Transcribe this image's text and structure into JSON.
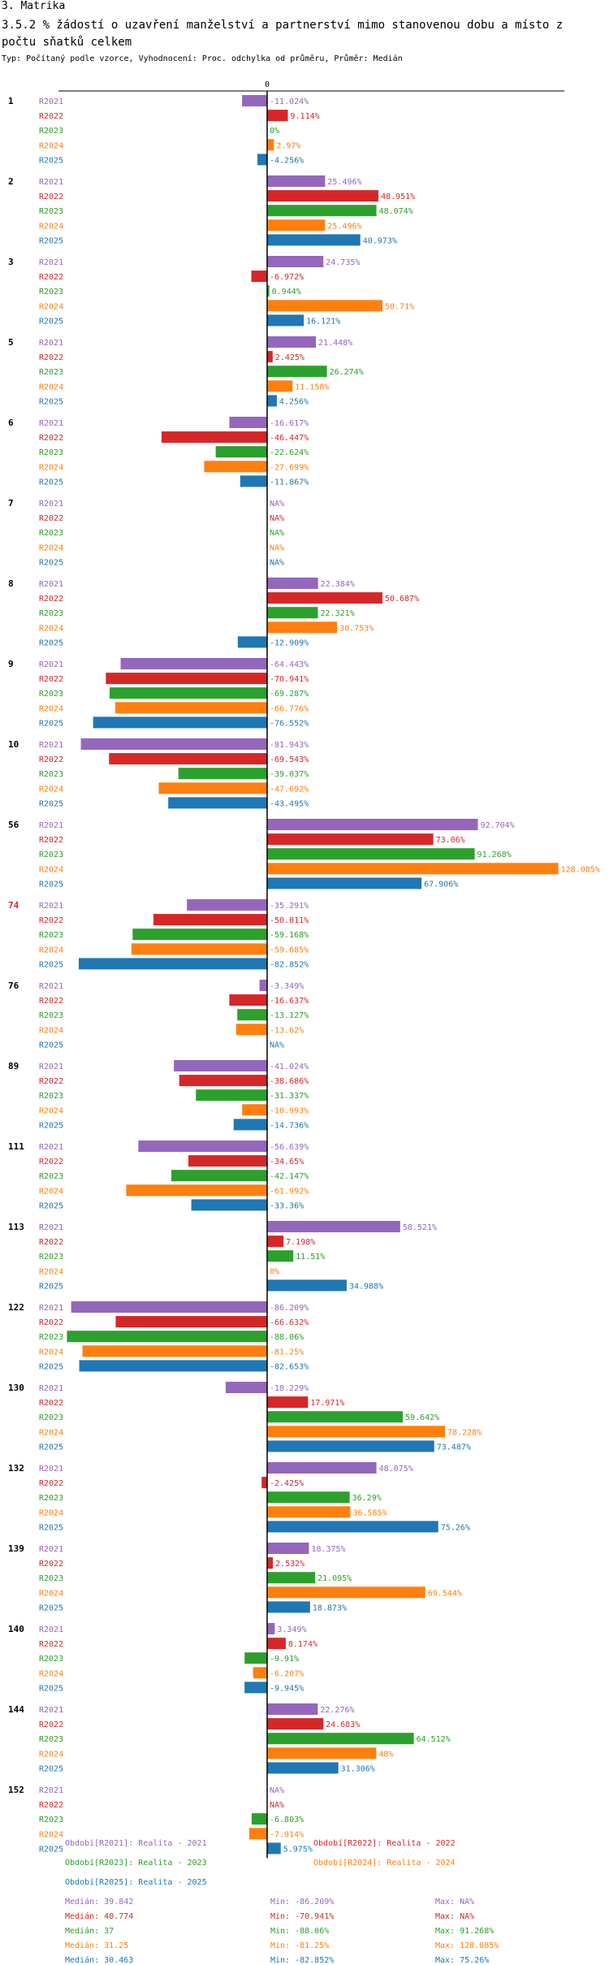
{
  "header": {
    "section": "3. Matrika",
    "title": "3.5.2 % žádostí o uzavření manželství a partnerství mimo stanovenou dobu a místo z počtu sňatků celkem",
    "meta": "Typ: Počítaný podle vzorce, Vyhodnocení: Proc. odchylka od průměru, Průměr: Medián"
  },
  "colors": {
    "R2021": "#9467bd",
    "R2022": "#d62728",
    "R2023": "#2ca02c",
    "R2024": "#ff7f0e",
    "R2025": "#1f77b4",
    "highlight_group": "#d62728"
  },
  "chart_data": {
    "type": "bar",
    "orientation": "horizontal",
    "axis_zero_label": "0",
    "value_suffix": "%",
    "xlim": [
      -100,
      130
    ],
    "series_names": [
      "R2021",
      "R2022",
      "R2023",
      "R2024",
      "R2025"
    ],
    "groups": [
      {
        "label": "1",
        "values": [
          -11.024,
          9.114,
          0,
          2.97,
          -4.256
        ]
      },
      {
        "label": "2",
        "values": [
          25.496,
          48.951,
          48.074,
          25.496,
          40.973
        ]
      },
      {
        "label": "3",
        "values": [
          24.735,
          -6.972,
          0.944,
          50.71,
          16.121
        ]
      },
      {
        "label": "5",
        "values": [
          21.448,
          2.425,
          26.274,
          11.158,
          4.256
        ]
      },
      {
        "label": "6",
        "values": [
          -16.617,
          -46.447,
          -22.624,
          -27.699,
          -11.867
        ]
      },
      {
        "label": "7",
        "values": [
          null,
          null,
          null,
          null,
          null
        ]
      },
      {
        "label": "8",
        "values": [
          22.384,
          50.687,
          22.321,
          30.753,
          -12.909
        ]
      },
      {
        "label": "9",
        "values": [
          -64.443,
          -70.941,
          -69.287,
          -66.776,
          -76.552
        ]
      },
      {
        "label": "10",
        "values": [
          -81.943,
          -69.543,
          -39.037,
          -47.692,
          -43.495
        ]
      },
      {
        "label": "56",
        "values": [
          92.704,
          73.06,
          91.268,
          128.085,
          67.906
        ]
      },
      {
        "label": "74",
        "values": [
          -35.291,
          -50.011,
          -59.168,
          -59.685,
          -82.852
        ],
        "highlight": true
      },
      {
        "label": "76",
        "values": [
          -3.349,
          -16.637,
          -13.127,
          -13.62,
          null
        ]
      },
      {
        "label": "89",
        "values": [
          -41.024,
          -38.686,
          -31.337,
          -10.993,
          -14.736
        ]
      },
      {
        "label": "111",
        "values": [
          -56.639,
          -34.65,
          -42.147,
          -61.992,
          -33.36
        ]
      },
      {
        "label": "113",
        "values": [
          58.521,
          7.198,
          11.51,
          0,
          34.988
        ]
      },
      {
        "label": "122",
        "values": [
          -86.209,
          -66.632,
          -88.06,
          -81.25,
          -82.653
        ]
      },
      {
        "label": "130",
        "values": [
          -18.229,
          17.971,
          59.642,
          78.228,
          73.487
        ]
      },
      {
        "label": "132",
        "values": [
          48.075,
          -2.425,
          36.29,
          36.585,
          75.26
        ]
      },
      {
        "label": "139",
        "values": [
          18.375,
          2.532,
          21.095,
          69.544,
          18.873
        ]
      },
      {
        "label": "140",
        "values": [
          3.349,
          8.174,
          -9.91,
          -6.207,
          -9.945
        ]
      },
      {
        "label": "144",
        "values": [
          22.276,
          24.683,
          64.512,
          48,
          31.306
        ]
      },
      {
        "label": "152",
        "values": [
          null,
          null,
          -6.803,
          -7.914,
          5.975
        ]
      }
    ],
    "na_label": "NA%",
    "legend": [
      {
        "series": "R2021",
        "text": "Období[R2021]: Realita - 2021"
      },
      {
        "series": "R2022",
        "text": "Období[R2022]: Realita - 2022"
      },
      {
        "series": "R2023",
        "text": "Období[R2023]: Realita - 2023"
      },
      {
        "series": "R2024",
        "text": "Období[R2024]: Realita - 2024"
      },
      {
        "series": "R2025",
        "text": "Období[R2025]: Realita - 2025"
      }
    ],
    "stats": [
      {
        "series": "R2021",
        "median": "Medián: 39.842",
        "min": "Min: -86.209%",
        "max": "Max: NA%"
      },
      {
        "series": "R2022",
        "median": "Medián: 40.774",
        "min": "Min: -70.941%",
        "max": "Max: NA%"
      },
      {
        "series": "R2023",
        "median": "Medián: 37",
        "min": "Min: -88.06%",
        "max": "Max: 91.268%"
      },
      {
        "series": "R2024",
        "median": "Medián: 31.25",
        "min": "Min: -81.25%",
        "max": "Max: 128.085%"
      },
      {
        "series": "R2025",
        "median": "Medián: 30.463",
        "min": "Min: -82.852%",
        "max": "Max: 75.26%"
      }
    ]
  }
}
